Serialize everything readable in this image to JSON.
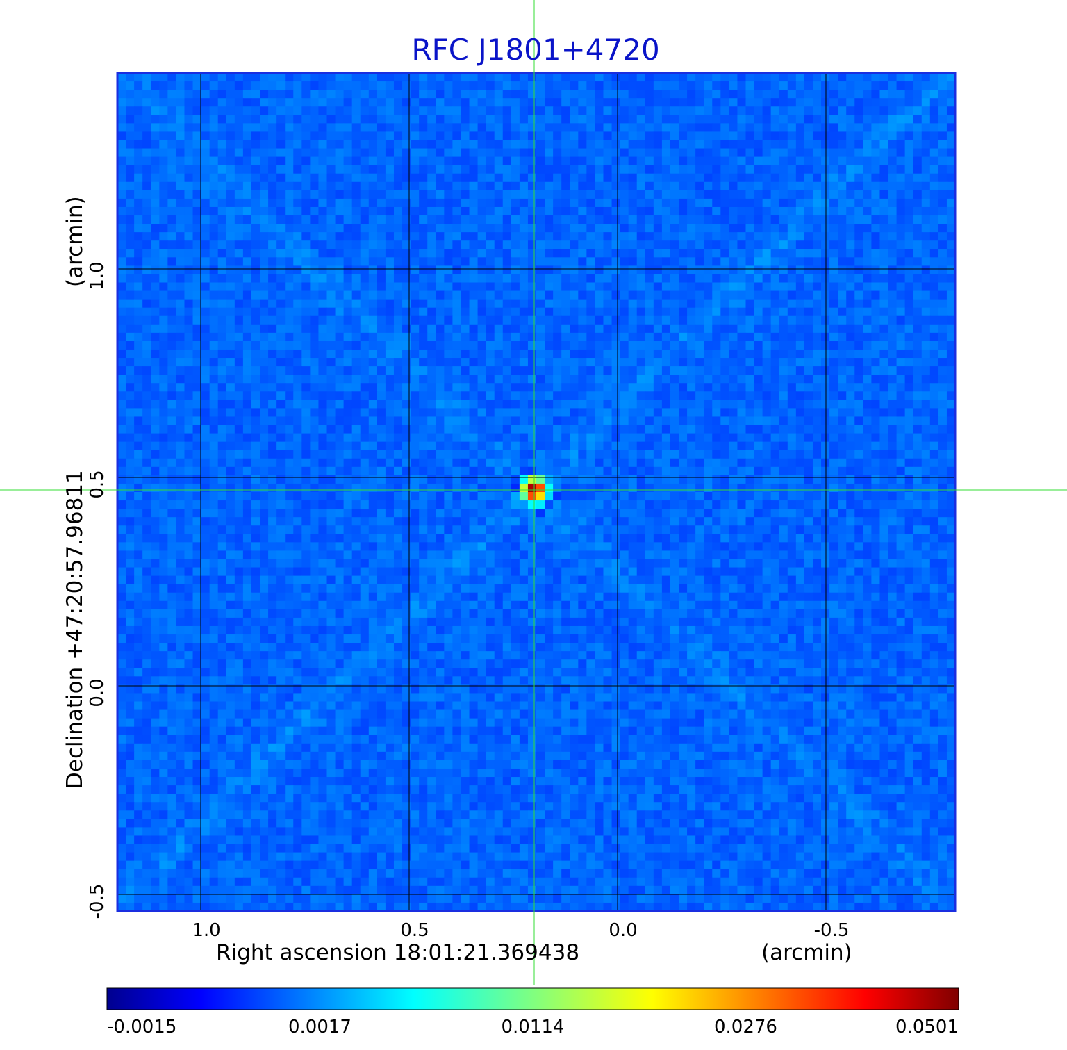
{
  "chart_data": {
    "type": "heatmap",
    "title": "RFC J1801+4720",
    "title_color": "#0a14c8",
    "xlabel": "Right ascension  18:01:21.369438",
    "xunit": "(arcmin)",
    "ylabel": "Declination  +47:20:57.96811",
    "yunit": "(arcmin)",
    "x_ticks": [
      1.0,
      0.5,
      0.0,
      -0.5
    ],
    "x_tick_labels": [
      "1.0",
      "0.5",
      "0.0",
      "-0.5"
    ],
    "y_ticks": [
      1.0,
      0.5,
      0.0,
      -0.5
    ],
    "y_tick_labels": [
      "1.0",
      "0.5",
      "0.0",
      "-0.5"
    ],
    "xlim": [
      1.2,
      -0.81
    ],
    "ylim": [
      -0.54,
      1.47
    ],
    "grid": true,
    "grid_color": "#000000",
    "frame_color": "#1a2ee0",
    "crosshair": {
      "x": 0.2,
      "y": 0.47,
      "color": "#33dd33"
    },
    "background_level": 0.0,
    "peak": {
      "x": 0.2,
      "y": 0.47,
      "value": 0.0501
    },
    "colorbar": {
      "colormap": "jet",
      "min": -0.0015,
      "max": 0.0501,
      "tick_values": [
        -0.0015,
        0.0017,
        0.0114,
        0.0276,
        0.0501
      ],
      "tick_labels": [
        "-0.0015",
        "0.0017",
        "0.0114",
        "0.0276",
        "0.0501"
      ]
    }
  }
}
